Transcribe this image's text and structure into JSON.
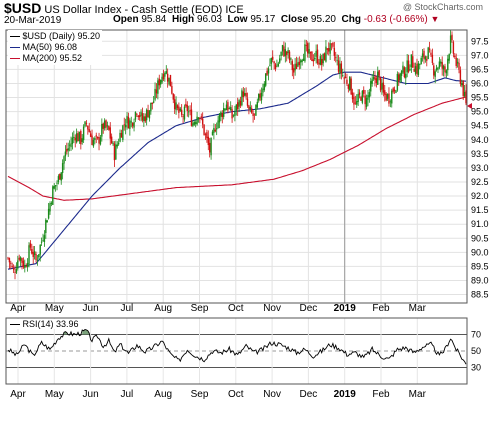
{
  "header": {
    "symbol": "$USD",
    "name": "US Dollar Index - Cash Settle (EOD)",
    "exchange": "ICE",
    "watermark": "@ StockCharts.com",
    "date": "20-Mar-2019",
    "open_label": "Open",
    "open": "95.84",
    "high_label": "High",
    "high": "96.03",
    "low_label": "Low",
    "low": "95.17",
    "close_label": "Close",
    "close": "95.20",
    "chg_label": "Chg",
    "chg": "-0.63 (-0.66%)"
  },
  "legend": {
    "price": "$USD (Daily) 95.20",
    "ma50": "MA(50) 96.08",
    "ma200": "MA(200) 95.52",
    "rsi": "RSI(14) 33.96"
  },
  "colors": {
    "up": "#1a8a1a",
    "down": "#d01010",
    "ma50": "#1c2a8c",
    "ma200": "#c8102e",
    "rsi_line": "#000000",
    "rsi_fill": "#5a8a5a"
  },
  "chart_data": [
    {
      "type": "candlestick",
      "x_axis": [
        "Apr",
        "May",
        "Jun",
        "Jul",
        "Aug",
        "Sep",
        "Oct",
        "Nov",
        "Dec",
        "2019",
        "Feb",
        "Mar"
      ],
      "y_ticks": [
        88.5,
        89.0,
        89.5,
        90.0,
        90.5,
        91.0,
        91.5,
        92.0,
        92.5,
        93.0,
        93.5,
        94.0,
        94.5,
        95.0,
        95.5,
        96.0,
        96.5,
        97.0,
        97.5
      ],
      "ylim": [
        88.2,
        97.9
      ],
      "grid": true,
      "price_anchors": [
        [
          0,
          89.8
        ],
        [
          4,
          89.3
        ],
        [
          8,
          89.9
        ],
        [
          12,
          89.5
        ],
        [
          16,
          90.2
        ],
        [
          20,
          89.7
        ],
        [
          24,
          90.4
        ],
        [
          28,
          91.3
        ],
        [
          32,
          92.2
        ],
        [
          36,
          92.6
        ],
        [
          40,
          93.4
        ],
        [
          44,
          93.8
        ],
        [
          48,
          94.2
        ],
        [
          52,
          94.0
        ],
        [
          56,
          94.6
        ],
        [
          60,
          94.0
        ],
        [
          64,
          93.9
        ],
        [
          68,
          94.5
        ],
        [
          72,
          94.3
        ],
        [
          76,
          93.5
        ],
        [
          80,
          94.2
        ],
        [
          84,
          94.7
        ],
        [
          88,
          94.6
        ],
        [
          92,
          95.1
        ],
        [
          96,
          94.7
        ],
        [
          100,
          95.0
        ],
        [
          104,
          95.4
        ],
        [
          108,
          96.1
        ],
        [
          112,
          96.5
        ],
        [
          116,
          96.0
        ],
        [
          120,
          95.1
        ],
        [
          124,
          94.8
        ],
        [
          128,
          95.1
        ],
        [
          132,
          94.6
        ],
        [
          136,
          95.0
        ],
        [
          140,
          94.3
        ],
        [
          144,
          93.6
        ],
        [
          148,
          94.5
        ],
        [
          152,
          94.9
        ],
        [
          156,
          95.3
        ],
        [
          160,
          94.8
        ],
        [
          164,
          95.2
        ],
        [
          168,
          95.7
        ],
        [
          172,
          95.0
        ],
        [
          176,
          94.8
        ],
        [
          180,
          95.6
        ],
        [
          184,
          96.3
        ],
        [
          188,
          96.8
        ],
        [
          192,
          96.6
        ],
        [
          196,
          97.2
        ],
        [
          200,
          97.0
        ],
        [
          204,
          96.4
        ],
        [
          208,
          96.9
        ],
        [
          212,
          97.2
        ],
        [
          216,
          96.9
        ],
        [
          220,
          97.0
        ],
        [
          224,
          96.7
        ],
        [
          228,
          97.3
        ],
        [
          232,
          97.1
        ],
        [
          236,
          96.6
        ],
        [
          240,
          96.2
        ],
        [
          244,
          96.0
        ],
        [
          248,
          95.2
        ],
        [
          252,
          95.6
        ],
        [
          256,
          95.4
        ],
        [
          260,
          96.0
        ],
        [
          264,
          96.3
        ],
        [
          268,
          95.6
        ],
        [
          272,
          95.5
        ],
        [
          276,
          95.9
        ],
        [
          280,
          96.3
        ],
        [
          284,
          96.5
        ],
        [
          288,
          96.8
        ],
        [
          292,
          96.5
        ],
        [
          296,
          96.9
        ],
        [
          300,
          97.1
        ],
        [
          304,
          96.5
        ],
        [
          308,
          96.7
        ],
        [
          312,
          96.4
        ],
        [
          316,
          97.5
        ],
        [
          320,
          96.7
        ],
        [
          324,
          96.0
        ],
        [
          327,
          95.2
        ]
      ],
      "ma50_anchors": [
        [
          0,
          89.4
        ],
        [
          20,
          89.6
        ],
        [
          40,
          90.8
        ],
        [
          60,
          92.0
        ],
        [
          80,
          93.0
        ],
        [
          100,
          93.9
        ],
        [
          120,
          94.5
        ],
        [
          140,
          94.8
        ],
        [
          160,
          95.0
        ],
        [
          180,
          95.1
        ],
        [
          200,
          95.3
        ],
        [
          220,
          95.9
        ],
        [
          232,
          96.3
        ],
        [
          240,
          96.4
        ],
        [
          252,
          96.4
        ],
        [
          268,
          96.2
        ],
        [
          284,
          96.0
        ],
        [
          300,
          96.0
        ],
        [
          312,
          96.2
        ],
        [
          320,
          96.1
        ],
        [
          327,
          96.08
        ]
      ],
      "ma200_anchors": [
        [
          0,
          92.7
        ],
        [
          15,
          92.3
        ],
        [
          25,
          92.0
        ],
        [
          40,
          91.85
        ],
        [
          60,
          91.9
        ],
        [
          90,
          92.1
        ],
        [
          120,
          92.3
        ],
        [
          160,
          92.4
        ],
        [
          190,
          92.6
        ],
        [
          210,
          92.9
        ],
        [
          230,
          93.3
        ],
        [
          250,
          93.8
        ],
        [
          270,
          94.4
        ],
        [
          290,
          94.9
        ],
        [
          310,
          95.3
        ],
        [
          327,
          95.52
        ]
      ],
      "last_close": 95.2
    },
    {
      "type": "line",
      "name": "RSI(14)",
      "y_ticks": [
        30,
        50,
        70
      ],
      "ylim": [
        10,
        90
      ],
      "reference_lines": [
        30,
        50,
        70
      ],
      "rsi_anchors": [
        [
          0,
          52
        ],
        [
          6,
          45
        ],
        [
          12,
          58
        ],
        [
          18,
          44
        ],
        [
          24,
          60
        ],
        [
          30,
          52
        ],
        [
          36,
          66
        ],
        [
          42,
          72
        ],
        [
          48,
          70
        ],
        [
          52,
          72
        ],
        [
          56,
          75
        ],
        [
          60,
          63
        ],
        [
          64,
          68
        ],
        [
          68,
          56
        ],
        [
          72,
          62
        ],
        [
          76,
          48
        ],
        [
          80,
          58
        ],
        [
          86,
          47
        ],
        [
          92,
          57
        ],
        [
          98,
          49
        ],
        [
          104,
          55
        ],
        [
          110,
          62
        ],
        [
          116,
          46
        ],
        [
          122,
          38
        ],
        [
          128,
          52
        ],
        [
          134,
          44
        ],
        [
          140,
          40
        ],
        [
          146,
          50
        ],
        [
          152,
          48
        ],
        [
          158,
          52
        ],
        [
          164,
          45
        ],
        [
          170,
          56
        ],
        [
          176,
          48
        ],
        [
          182,
          52
        ],
        [
          188,
          60
        ],
        [
          194,
          58
        ],
        [
          200,
          54
        ],
        [
          206,
          48
        ],
        [
          212,
          52
        ],
        [
          218,
          44
        ],
        [
          224,
          50
        ],
        [
          230,
          58
        ],
        [
          236,
          54
        ],
        [
          242,
          46
        ],
        [
          248,
          48
        ],
        [
          254,
          42
        ],
        [
          260,
          52
        ],
        [
          266,
          44
        ],
        [
          272,
          40
        ],
        [
          278,
          52
        ],
        [
          284,
          54
        ],
        [
          290,
          48
        ],
        [
          296,
          55
        ],
        [
          302,
          58
        ],
        [
          308,
          44
        ],
        [
          312,
          52
        ],
        [
          316,
          66
        ],
        [
          320,
          52
        ],
        [
          324,
          42
        ],
        [
          327,
          34
        ]
      ],
      "last_value": 33.96
    }
  ]
}
